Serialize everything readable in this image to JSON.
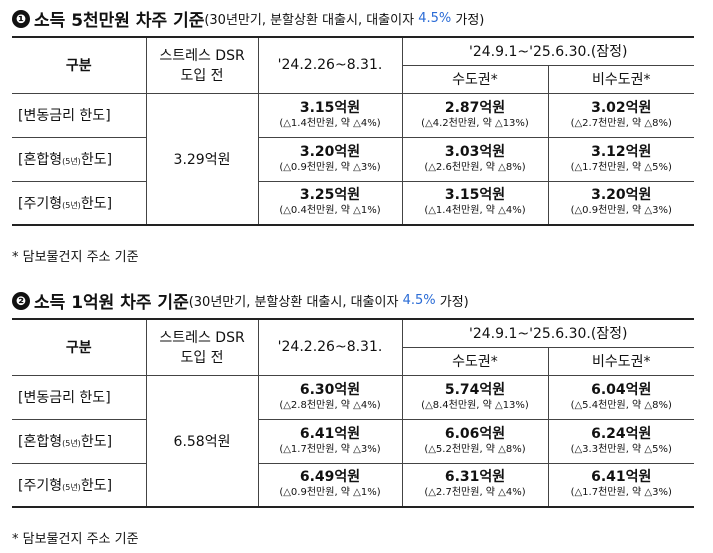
{
  "sections": [
    {
      "number": "❶",
      "title": "소득 5천만원 차주 기준",
      "subtitle": "(30년만기, 분할상환 대출시, 대출이자 ",
      "rate": "4.5%",
      "subtitle_tail": " 가정)",
      "header": {
        "category": "구분",
        "pre_dsr": "스트레스 DSR 도입 전",
        "period1": "'24.2.26~8.31.",
        "period2": "'24.9.1~'25.6.30.(잠정)",
        "metro": "수도권*",
        "nonmetro": "비수도권*"
      },
      "baseline": "3.29억원",
      "rows": [
        {
          "label": "[변동금리 한도]",
          "label_small": "",
          "p1": {
            "amount": "3.15억원",
            "change": "(△1.4천만원, 약 △4%)"
          },
          "metro": {
            "amount": "2.87억원",
            "change": "(△4.2천만원, 약 △13%)"
          },
          "nonmetro": {
            "amount": "3.02억원",
            "change": "(△2.7천만원, 약 △8%)"
          }
        },
        {
          "label": "[혼합형",
          "label_small": "(5년)",
          "label_end": "한도]",
          "p1": {
            "amount": "3.20억원",
            "change": "(△0.9천만원, 약 △3%)"
          },
          "metro": {
            "amount": "3.03억원",
            "change": "(△2.6천만원, 약 △8%)"
          },
          "nonmetro": {
            "amount": "3.12억원",
            "change": "(△1.7천만원, 약 △5%)"
          }
        },
        {
          "label": "[주기형",
          "label_small": "(5년)",
          "label_end": "한도]",
          "p1": {
            "amount": "3.25억원",
            "change": "(△0.4천만원, 약 △1%)"
          },
          "metro": {
            "amount": "3.15억원",
            "change": "(△1.4천만원, 약 △4%)"
          },
          "nonmetro": {
            "amount": "3.20억원",
            "change": "(△0.9천만원, 약 △3%)"
          }
        }
      ],
      "footnote": "* 담보물건지 주소 기준"
    },
    {
      "number": "❷",
      "title": "소득 1억원 차주 기준",
      "subtitle": "(30년만기, 분할상환 대출시, 대출이자 ",
      "rate": "4.5%",
      "subtitle_tail": " 가정)",
      "header": {
        "category": "구분",
        "pre_dsr": "스트레스 DSR 도입 전",
        "period1": "'24.2.26~8.31.",
        "period2": "'24.9.1~'25.6.30.(잠정)",
        "metro": "수도권*",
        "nonmetro": "비수도권*"
      },
      "baseline": "6.58억원",
      "rows": [
        {
          "label": "[변동금리 한도]",
          "label_small": "",
          "p1": {
            "amount": "6.30억원",
            "change": "(△2.8천만원, 약 △4%)"
          },
          "metro": {
            "amount": "5.74억원",
            "change": "(△8.4천만원, 약 △13%)"
          },
          "nonmetro": {
            "amount": "6.04억원",
            "change": "(△5.4천만원, 약 △8%)"
          }
        },
        {
          "label": "[혼합형",
          "label_small": "(5년)",
          "label_end": "한도]",
          "p1": {
            "amount": "6.41억원",
            "change": "(△1.7천만원, 약 △3%)"
          },
          "metro": {
            "amount": "6.06억원",
            "change": "(△5.2천만원, 약 △8%)"
          },
          "nonmetro": {
            "amount": "6.24억원",
            "change": "(△3.3천만원, 약 △5%)"
          }
        },
        {
          "label": "[주기형",
          "label_small": "(5년)",
          "label_end": "한도]",
          "p1": {
            "amount": "6.49억원",
            "change": "(△0.9천만원, 약 △1%)"
          },
          "metro": {
            "amount": "6.31억원",
            "change": "(△2.7천만원, 약 △4%)"
          },
          "nonmetro": {
            "amount": "6.41억원",
            "change": "(△1.7천만원, 약 △3%)"
          }
        }
      ],
      "footnote": "* 담보물건지 주소 기준"
    }
  ]
}
